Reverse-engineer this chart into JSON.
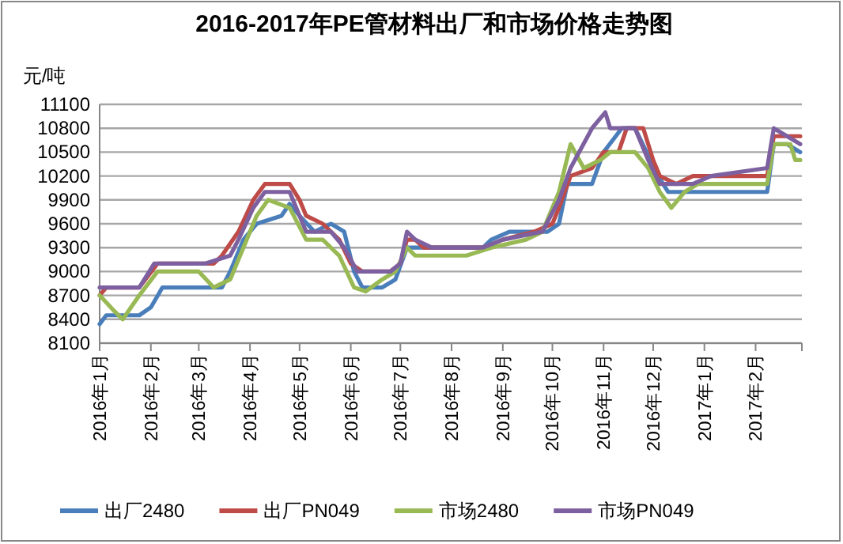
{
  "chart_data": {
    "type": "line",
    "title": "2016-2017年PE管材料出厂和市场价格走势图",
    "ylabel": "元/吨",
    "xlim": [
      "2016-01-01",
      "2017-03-01"
    ],
    "xticks": [
      {
        "value": "2016-01-01",
        "label": "2016年1月"
      },
      {
        "value": "2016-02-01",
        "label": "2016年2月"
      },
      {
        "value": "2016-03-01",
        "label": "2016年3月"
      },
      {
        "value": "2016-04-01",
        "label": "2016年4月"
      },
      {
        "value": "2016-05-01",
        "label": "2016年5月"
      },
      {
        "value": "2016-06-01",
        "label": "2016年6月"
      },
      {
        "value": "2016-07-01",
        "label": "2016年7月"
      },
      {
        "value": "2016-08-01",
        "label": "2016年8月"
      },
      {
        "value": "2016-09-01",
        "label": "2016年9月"
      },
      {
        "value": "2016-10-01",
        "label": "2016年10月"
      },
      {
        "value": "2016-11-01",
        "label": "2016年11月"
      },
      {
        "value": "2016-12-01",
        "label": "2016年12月"
      },
      {
        "value": "2017-01-01",
        "label": "2017年1月"
      },
      {
        "value": "2017-02-01",
        "label": "2017年2月"
      },
      {
        "value": "2017-03-01",
        "label": null
      }
    ],
    "ylim": [
      8100,
      11100
    ],
    "yticks": [
      8100,
      8400,
      8700,
      9000,
      9300,
      9600,
      9900,
      10200,
      10500,
      10800,
      11100
    ],
    "grid": "y",
    "legend": "bottom",
    "line_style": "solid",
    "marker": "none",
    "series": [
      {
        "name": "出厂2480",
        "color": "#4a7ebb",
        "x": [
          "2016-01-01",
          "2016-01-05",
          "2016-01-25",
          "2016-02-01",
          "2016-02-08",
          "2016-03-15",
          "2016-03-20",
          "2016-03-28",
          "2016-04-05",
          "2016-04-20",
          "2016-04-25",
          "2016-05-01",
          "2016-05-10",
          "2016-05-20",
          "2016-05-28",
          "2016-06-03",
          "2016-06-08",
          "2016-06-20",
          "2016-06-28",
          "2016-07-05",
          "2016-08-20",
          "2016-08-25",
          "2016-09-05",
          "2016-09-28",
          "2016-10-05",
          "2016-10-10",
          "2016-10-25",
          "2016-11-01",
          "2016-11-12",
          "2016-11-20",
          "2016-11-27",
          "2016-12-01",
          "2016-12-10",
          "2017-02-08",
          "2017-02-12",
          "2017-02-20",
          "2017-02-28"
        ],
        "values": [
          8340,
          8450,
          8450,
          8550,
          8800,
          8800,
          9000,
          9400,
          9600,
          9700,
          9850,
          9700,
          9500,
          9600,
          9500,
          9000,
          8800,
          8800,
          8900,
          9300,
          9300,
          9400,
          9500,
          9500,
          9600,
          10100,
          10100,
          10500,
          10800,
          10800,
          10500,
          10300,
          10000,
          10000,
          10600,
          10600,
          10500
        ]
      },
      {
        "name": "出厂PN049",
        "color": "#be4b48",
        "x": [
          "2016-01-01",
          "2016-01-05",
          "2016-01-25",
          "2016-02-05",
          "2016-03-10",
          "2016-03-15",
          "2016-03-25",
          "2016-04-03",
          "2016-04-10",
          "2016-04-25",
          "2016-05-01",
          "2016-05-05",
          "2016-05-15",
          "2016-05-25",
          "2016-06-01",
          "2016-06-08",
          "2016-06-25",
          "2016-07-01",
          "2016-07-05",
          "2016-07-10",
          "2016-07-15",
          "2016-08-20",
          "2016-09-01",
          "2016-09-20",
          "2016-10-01",
          "2016-10-05",
          "2016-10-12",
          "2016-10-25",
          "2016-11-01",
          "2016-11-10",
          "2016-11-15",
          "2016-11-25",
          "2016-12-01",
          "2016-12-05",
          "2016-12-15",
          "2016-12-25",
          "2017-02-08",
          "2017-02-12",
          "2017-02-28"
        ],
        "values": [
          8700,
          8800,
          8800,
          9100,
          9100,
          9200,
          9500,
          9900,
          10100,
          10100,
          9900,
          9700,
          9600,
          9400,
          9100,
          9000,
          9000,
          9100,
          9400,
          9400,
          9300,
          9300,
          9400,
          9500,
          9600,
          9800,
          10200,
          10300,
          10500,
          10500,
          10800,
          10800,
          10400,
          10200,
          10100,
          10200,
          10200,
          10700,
          10700
        ]
      },
      {
        "name": "市场2480",
        "color": "#98b954",
        "x": [
          "2016-01-01",
          "2016-01-10",
          "2016-01-15",
          "2016-01-25",
          "2016-02-05",
          "2016-03-01",
          "2016-03-10",
          "2016-03-20",
          "2016-03-28",
          "2016-04-05",
          "2016-04-12",
          "2016-04-25",
          "2016-05-05",
          "2016-05-15",
          "2016-05-25",
          "2016-06-03",
          "2016-06-10",
          "2016-06-20",
          "2016-06-28",
          "2016-07-05",
          "2016-07-10",
          "2016-08-10",
          "2016-08-25",
          "2016-09-15",
          "2016-09-25",
          "2016-10-05",
          "2016-10-12",
          "2016-10-20",
          "2016-10-30",
          "2016-11-05",
          "2016-11-20",
          "2016-11-28",
          "2016-12-05",
          "2016-12-12",
          "2016-12-20",
          "2016-12-28",
          "2017-02-08",
          "2017-02-12",
          "2017-02-22",
          "2017-02-25",
          "2017-02-28"
        ],
        "values": [
          8700,
          8500,
          8400,
          8700,
          9000,
          9000,
          8800,
          8900,
          9300,
          9700,
          9900,
          9800,
          9400,
          9400,
          9200,
          8800,
          8750,
          8900,
          9000,
          9300,
          9200,
          9200,
          9300,
          9400,
          9500,
          10000,
          10600,
          10300,
          10400,
          10500,
          10500,
          10300,
          10000,
          9800,
          10000,
          10100,
          10100,
          10600,
          10600,
          10400,
          10400
        ]
      },
      {
        "name": "市场PN049",
        "color": "#7d60a0",
        "x": [
          "2016-01-01",
          "2016-01-25",
          "2016-02-03",
          "2016-03-05",
          "2016-03-20",
          "2016-03-25",
          "2016-04-03",
          "2016-04-10",
          "2016-04-25",
          "2016-05-01",
          "2016-05-05",
          "2016-05-20",
          "2016-05-28",
          "2016-06-05",
          "2016-06-25",
          "2016-07-01",
          "2016-07-05",
          "2016-07-10",
          "2016-07-20",
          "2016-08-20",
          "2016-09-01",
          "2016-09-25",
          "2016-10-05",
          "2016-10-12",
          "2016-10-25",
          "2016-11-02",
          "2016-11-05",
          "2016-11-20",
          "2016-11-28",
          "2016-12-05",
          "2016-12-25",
          "2017-01-05",
          "2017-02-08",
          "2017-02-12",
          "2017-02-20",
          "2017-02-28"
        ],
        "values": [
          8800,
          8800,
          9100,
          9100,
          9200,
          9400,
          9800,
          10000,
          10000,
          9700,
          9500,
          9500,
          9300,
          9000,
          9000,
          9100,
          9500,
          9400,
          9300,
          9300,
          9400,
          9500,
          9900,
          10300,
          10800,
          11000,
          10800,
          10800,
          10400,
          10100,
          10100,
          10200,
          10300,
          10800,
          10700,
          10600
        ]
      }
    ]
  }
}
